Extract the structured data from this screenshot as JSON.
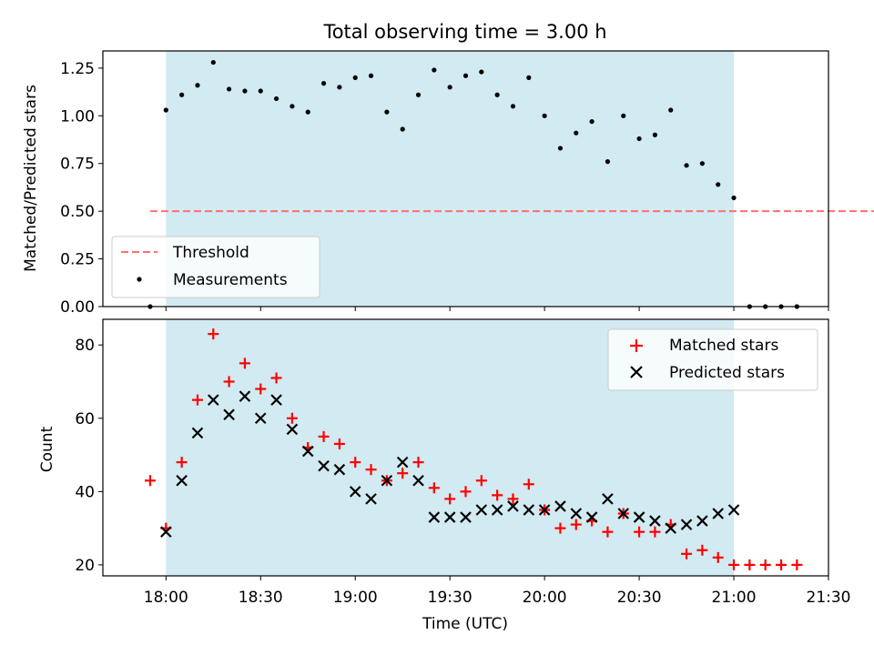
{
  "chart_data": [
    {
      "type": "scatter",
      "title": "Total observing time = 3.00 h",
      "xlabel": "",
      "ylabel": "Matched/Predicted stars",
      "ylim": [
        0,
        1.34
      ],
      "yticks": [
        "0.00",
        "0.25",
        "0.50",
        "0.75",
        "1.00",
        "1.25"
      ],
      "ytick_values": [
        0,
        0.25,
        0.5,
        0.75,
        1.0,
        1.25
      ],
      "observing_window": [
        "18:00",
        "21:00"
      ],
      "window_color": "#add8e6",
      "threshold": {
        "name": "Threshold",
        "y": 0.5,
        "x_range": [
          "17:55",
          "22:20"
        ],
        "color": "#ff7070"
      },
      "measurements": {
        "name": "Measurements",
        "color": "#000000",
        "x": [
          "17:55",
          "18:00",
          "18:05",
          "18:10",
          "18:15",
          "18:20",
          "18:25",
          "18:30",
          "18:35",
          "18:40",
          "18:45",
          "18:50",
          "18:55",
          "19:00",
          "19:05",
          "19:10",
          "19:15",
          "19:20",
          "19:25",
          "19:30",
          "19:35",
          "19:40",
          "19:45",
          "19:50",
          "19:55",
          "20:00",
          "20:05",
          "20:10",
          "20:15",
          "20:20",
          "20:25",
          "20:30",
          "20:35",
          "20:40",
          "20:45",
          "20:50",
          "20:55",
          "21:00",
          "21:05",
          "21:10",
          "21:15",
          "21:20"
        ],
        "y": [
          0.0,
          1.03,
          1.11,
          1.16,
          1.28,
          1.14,
          1.13,
          1.13,
          1.09,
          1.05,
          1.02,
          1.17,
          1.15,
          1.2,
          1.21,
          1.02,
          0.93,
          1.11,
          1.24,
          1.15,
          1.21,
          1.23,
          1.11,
          1.05,
          1.2,
          1.0,
          0.83,
          0.91,
          0.97,
          0.76,
          1.0,
          0.88,
          0.9,
          1.03,
          0.74,
          0.75,
          0.64,
          0.57,
          0.0,
          0.0,
          0.0,
          0.0
        ]
      },
      "legend": [
        "Threshold",
        "Measurements"
      ],
      "legend_position": "lower-left"
    },
    {
      "type": "scatter",
      "title": "",
      "xlabel": "Time (UTC)",
      "ylabel": "Count",
      "ylim": [
        17,
        87
      ],
      "yticks": [
        "20",
        "40",
        "60",
        "80"
      ],
      "ytick_values": [
        20,
        40,
        60,
        80
      ],
      "xlim": [
        "17:40",
        "21:30"
      ],
      "xticks": [
        "18:00",
        "18:30",
        "19:00",
        "19:30",
        "20:00",
        "20:30",
        "21:00",
        "21:30"
      ],
      "observing_window": [
        "18:00",
        "21:00"
      ],
      "window_color": "#add8e6",
      "series": [
        {
          "name": "Matched stars",
          "marker": "+",
          "color": "#ff0000",
          "x": [
            "17:55",
            "18:00",
            "18:05",
            "18:10",
            "18:15",
            "18:20",
            "18:25",
            "18:30",
            "18:35",
            "18:40",
            "18:45",
            "18:50",
            "18:55",
            "19:00",
            "19:05",
            "19:10",
            "19:15",
            "19:20",
            "19:25",
            "19:30",
            "19:35",
            "19:40",
            "19:45",
            "19:50",
            "19:55",
            "20:00",
            "20:05",
            "20:10",
            "20:15",
            "20:20",
            "20:25",
            "20:30",
            "20:35",
            "20:40",
            "20:45",
            "20:50",
            "20:55",
            "21:00",
            "21:05",
            "21:10",
            "21:15",
            "21:20"
          ],
          "y": [
            43,
            30,
            48,
            65,
            83,
            70,
            75,
            68,
            71,
            60,
            52,
            55,
            53,
            48,
            46,
            43,
            45,
            48,
            41,
            38,
            40,
            43,
            39,
            38,
            42,
            35,
            30,
            31,
            32,
            29,
            34,
            29,
            29,
            31,
            23,
            24,
            22,
            20,
            20,
            20,
            20,
            20
          ]
        },
        {
          "name": "Predicted stars",
          "marker": "x",
          "color": "#000000",
          "x": [
            "18:00",
            "18:05",
            "18:10",
            "18:15",
            "18:20",
            "18:25",
            "18:30",
            "18:35",
            "18:40",
            "18:45",
            "18:50",
            "18:55",
            "19:00",
            "19:05",
            "19:10",
            "19:15",
            "19:20",
            "19:25",
            "19:30",
            "19:35",
            "19:40",
            "19:45",
            "19:50",
            "19:55",
            "20:00",
            "20:05",
            "20:10",
            "20:15",
            "20:20",
            "20:25",
            "20:30",
            "20:35",
            "20:40",
            "20:45",
            "20:50",
            "20:55",
            "21:00"
          ],
          "y": [
            29,
            43,
            56,
            65,
            61,
            66,
            60,
            65,
            57,
            51,
            47,
            46,
            40,
            38,
            43,
            48,
            43,
            33,
            33,
            33,
            35,
            35,
            36,
            35,
            35,
            36,
            34,
            33,
            38,
            34,
            33,
            32,
            30,
            31,
            32,
            34,
            35
          ]
        }
      ],
      "legend": [
        "Matched stars",
        "Predicted stars"
      ],
      "legend_position": "upper-right"
    }
  ]
}
